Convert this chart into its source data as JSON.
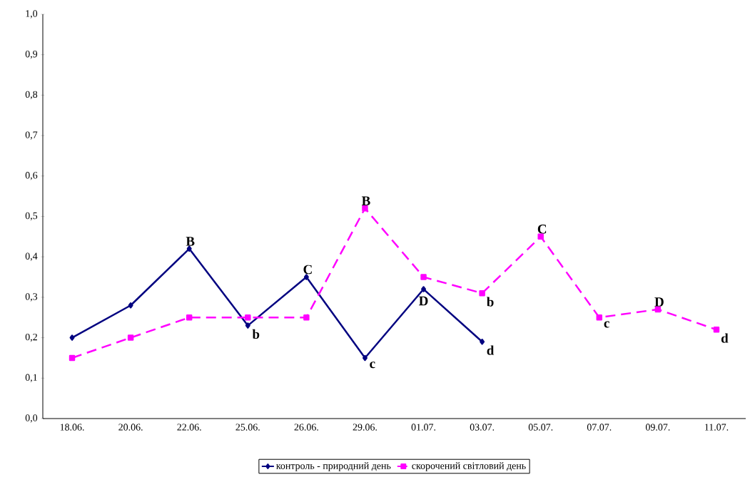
{
  "chart_data": {
    "type": "line",
    "categories": [
      "18.06.",
      "20.06.",
      "22.06.",
      "25.06.",
      "26.06.",
      "29.06.",
      "01.07.",
      "03.07.",
      "05.07.",
      "07.07.",
      "09.07.",
      "11.07."
    ],
    "series": [
      {
        "name": "контроль - природний день",
        "color": "#000080",
        "marker": "diamond",
        "line_style": "solid",
        "values": [
          0.2,
          0.28,
          0.42,
          0.23,
          0.35,
          0.15,
          0.32,
          0.19,
          null,
          null,
          null,
          null
        ]
      },
      {
        "name": "скорочений світловий день",
        "color": "#ff00ff",
        "marker": "square",
        "line_style": "dashed",
        "values": [
          0.15,
          0.2,
          0.25,
          0.25,
          0.25,
          0.52,
          0.35,
          0.31,
          0.45,
          0.25,
          0.27,
          0.22
        ]
      }
    ],
    "ylim": [
      0,
      1
    ],
    "yticks": [
      {
        "value": 0,
        "label": "0,0"
      },
      {
        "value": 0.1,
        "label": "0,1"
      },
      {
        "value": 0.2,
        "label": "0,2"
      },
      {
        "value": 0.3,
        "label": "0,3"
      },
      {
        "value": 0.4,
        "label": "0,4"
      },
      {
        "value": 0.5,
        "label": "0,5"
      },
      {
        "value": 0.6,
        "label": "0,6"
      },
      {
        "value": 0.7,
        "label": "0,7"
      },
      {
        "value": 0.8,
        "label": "0,8"
      },
      {
        "value": 0.9,
        "label": "0,9"
      },
      {
        "value": 1,
        "label": "1,0"
      }
    ],
    "grid": false,
    "legend": "bottom",
    "annotations": [
      {
        "text": "B",
        "x": "22.06.",
        "y": 0.42
      },
      {
        "text": "b",
        "x": "25.06.",
        "y": 0.23
      },
      {
        "text": "C",
        "x": "26.06.",
        "y": 0.35
      },
      {
        "text": "c",
        "x": "29.06.",
        "y": 0.15
      },
      {
        "text": "D",
        "x": "01.07.",
        "y": 0.32
      },
      {
        "text": "d",
        "x": "03.07.",
        "y": 0.19
      },
      {
        "text": "B",
        "x": "29.06.",
        "y": 0.52
      },
      {
        "text": "b",
        "x": "03.07.",
        "y": 0.31
      },
      {
        "text": "C",
        "x": "05.07.",
        "y": 0.45
      },
      {
        "text": "c",
        "x": "07.07.",
        "y": 0.25
      },
      {
        "text": "D",
        "x": "09.07.",
        "y": 0.27
      },
      {
        "text": "d",
        "x": "11.07.",
        "y": 0.22
      }
    ]
  }
}
